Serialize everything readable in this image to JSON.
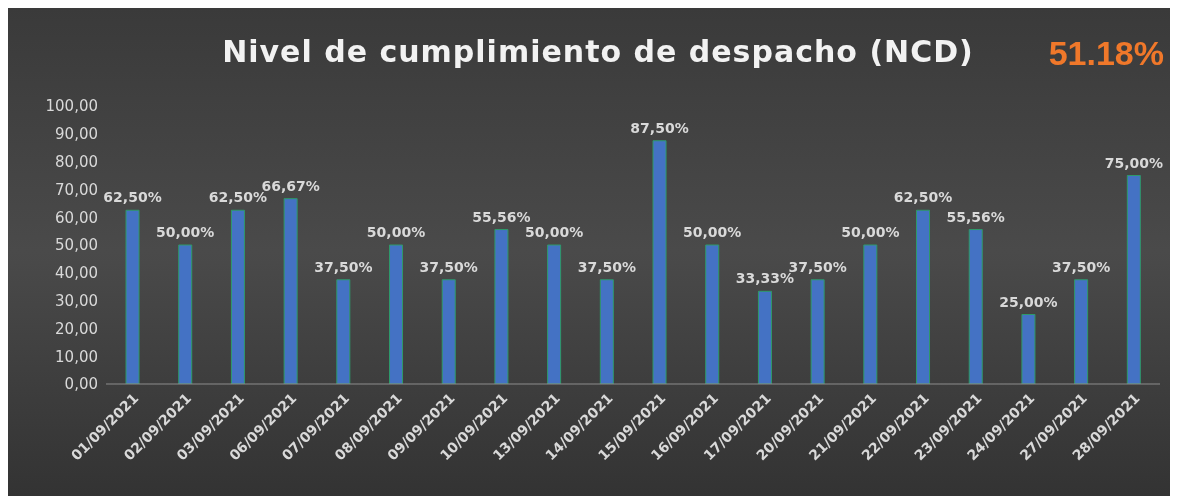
{
  "chart_data": {
    "type": "bar",
    "title": "Nivel de cumplimiento de despacho (NCD)",
    "annotations": [
      "51.18%"
    ],
    "categories": [
      "01/09/2021",
      "02/09/2021",
      "03/09/2021",
      "06/09/2021",
      "07/09/2021",
      "08/09/2021",
      "09/09/2021",
      "10/09/2021",
      "13/09/2021",
      "14/09/2021",
      "15/09/2021",
      "16/09/2021",
      "17/09/2021",
      "20/09/2021",
      "21/09/2021",
      "22/09/2021",
      "23/09/2021",
      "24/09/2021",
      "27/09/2021",
      "28/09/2021"
    ],
    "values": [
      62.5,
      50,
      62.5,
      66.67,
      37.5,
      50,
      37.5,
      55.56,
      50,
      37.5,
      87.5,
      50,
      33.33,
      37.5,
      50,
      62.5,
      55.56,
      25,
      37.5,
      75
    ],
    "value_labels": [
      "62,50%",
      "50,00%",
      "62,50%",
      "66,67%",
      "37,50%",
      "50,00%",
      "37,50%",
      "55,56%",
      "50,00%",
      "37,50%",
      "87,50%",
      "50,00%",
      "33,33%",
      "37,50%",
      "50,00%",
      "62,50%",
      "55,56%",
      "25,00%",
      "37,50%",
      "75,00%"
    ],
    "color": "#4472c4",
    "ylim": [
      0,
      100
    ],
    "yticks": [
      {
        "value": 0,
        "label": "0,00"
      },
      {
        "value": 10,
        "label": "10,00"
      },
      {
        "value": 20,
        "label": "20,00"
      },
      {
        "value": 30,
        "label": "30,00"
      },
      {
        "value": 40,
        "label": "40,00"
      },
      {
        "value": 50,
        "label": "50,00"
      },
      {
        "value": 60,
        "label": "60,00"
      },
      {
        "value": 70,
        "label": "70,00"
      },
      {
        "value": 80,
        "label": "80,00"
      },
      {
        "value": 90,
        "label": "90,00"
      },
      {
        "value": 100,
        "label": "100,00"
      }
    ]
  }
}
